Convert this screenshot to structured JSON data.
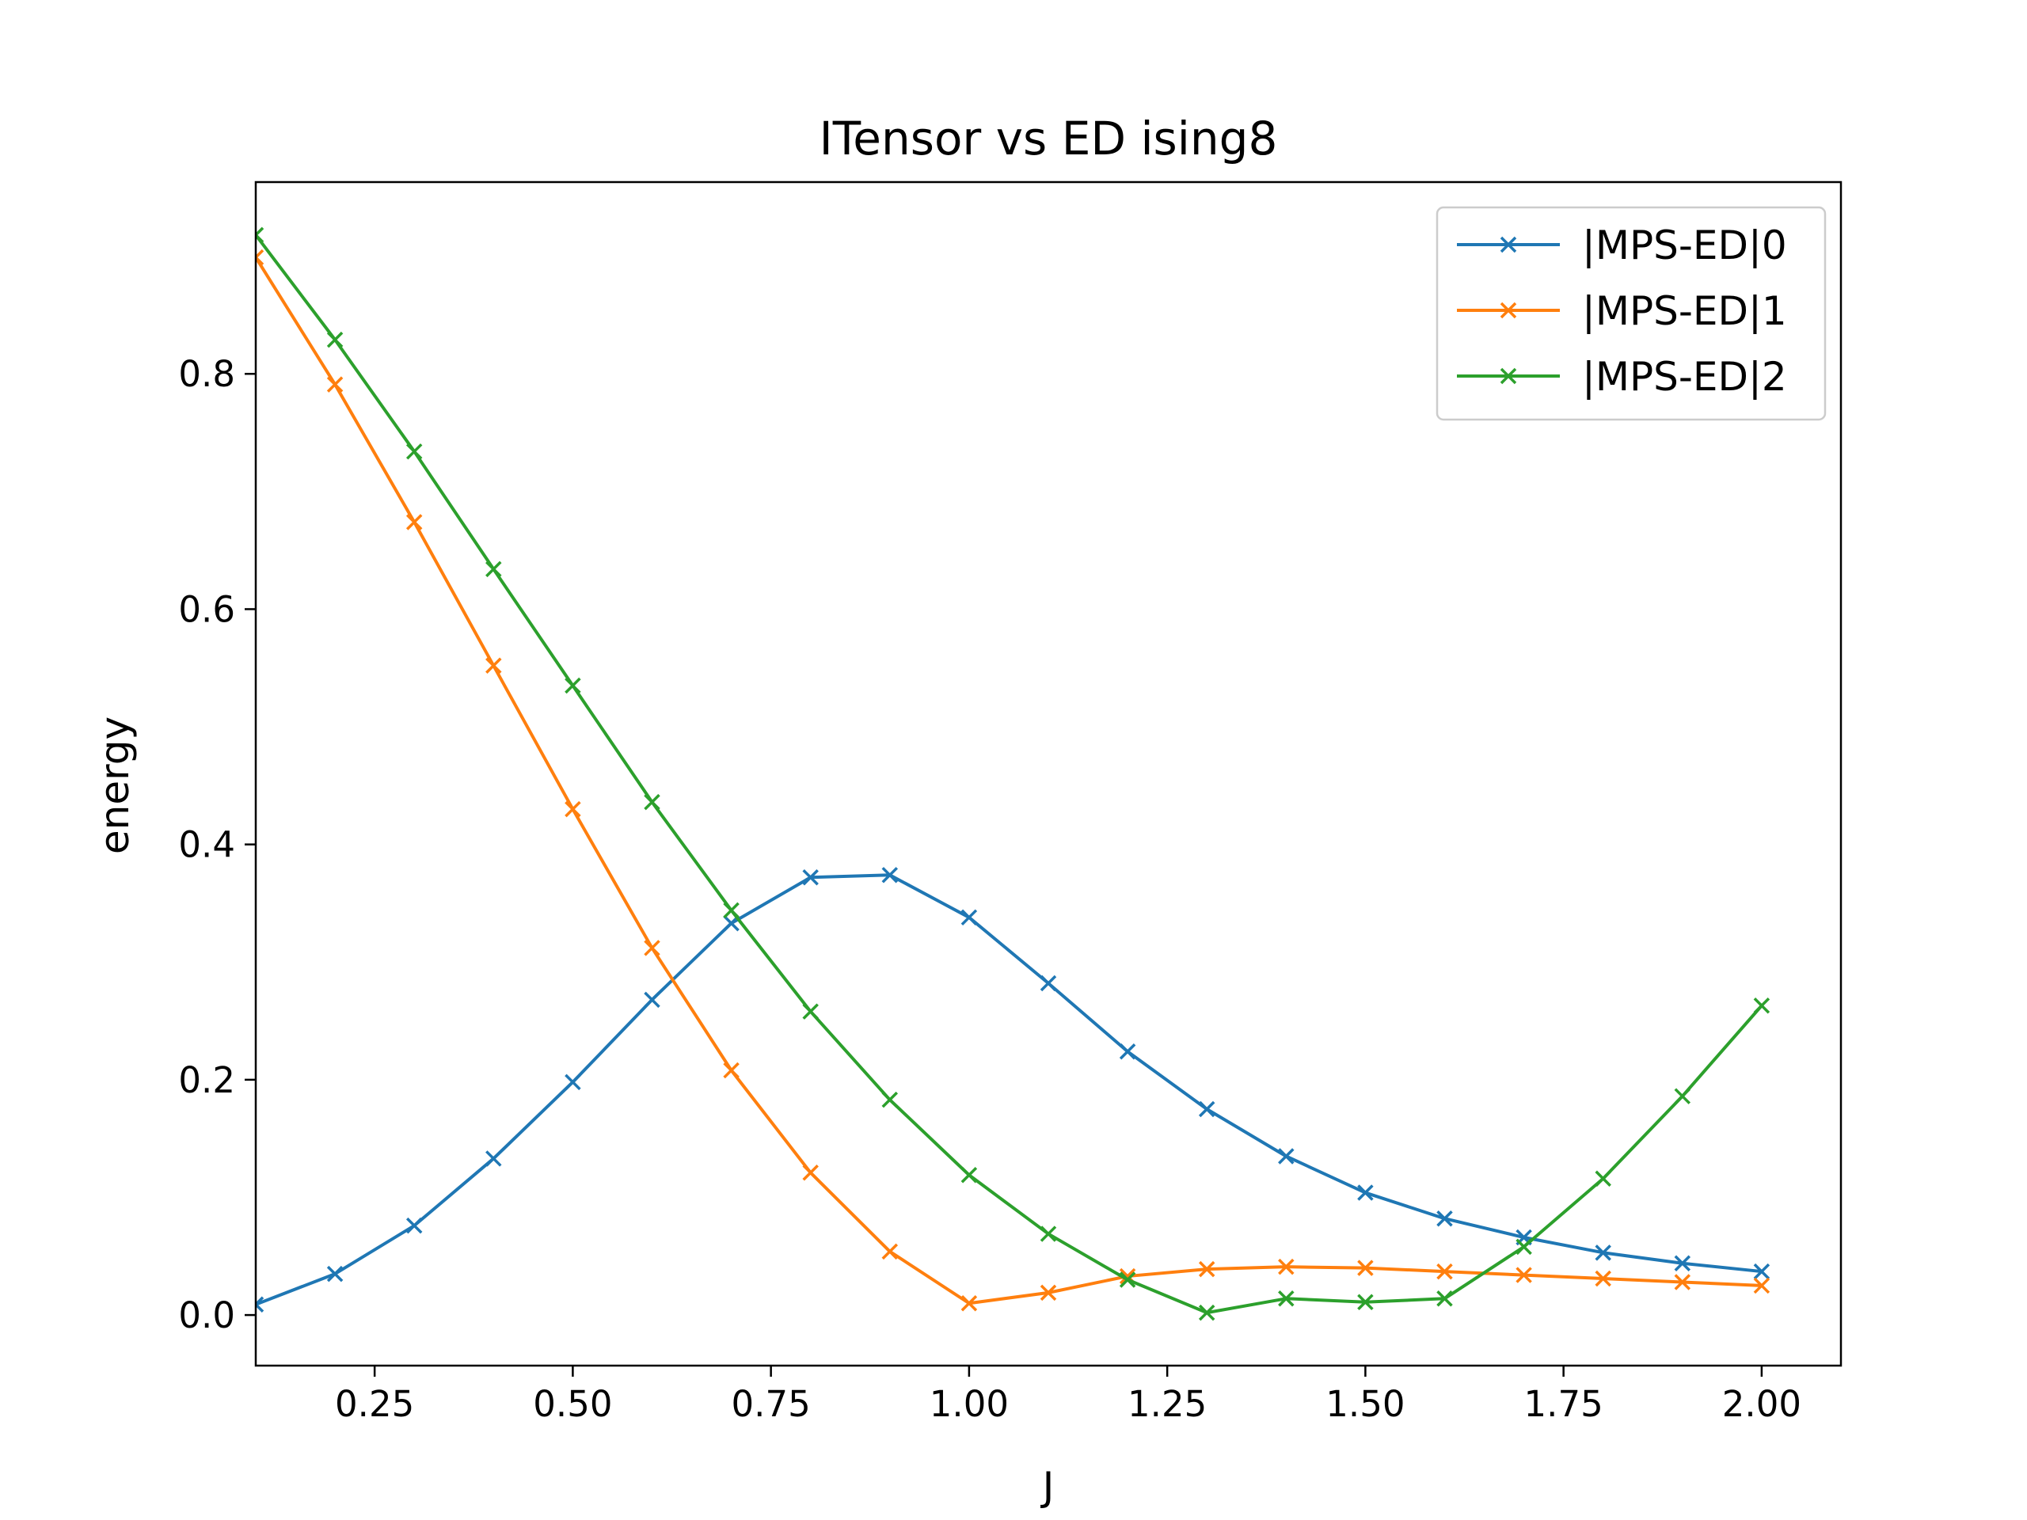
{
  "chart_data": {
    "type": "line",
    "title": "ITensor vs ED ising8",
    "xlabel": "J",
    "ylabel": "energy",
    "xlim": [
      0.1,
      2.1
    ],
    "ylim": [
      -0.043,
      0.963
    ],
    "xticks": [
      0.25,
      0.5,
      0.75,
      1.0,
      1.25,
      1.5,
      1.75,
      2.0
    ],
    "xtick_labels": [
      "0.25",
      "0.50",
      "0.75",
      "1.00",
      "1.25",
      "1.50",
      "1.75",
      "2.00"
    ],
    "yticks": [
      0.0,
      0.2,
      0.4,
      0.6,
      0.8
    ],
    "ytick_labels": [
      "0.0",
      "0.2",
      "0.4",
      "0.6",
      "0.8"
    ],
    "grid": false,
    "legend_position": "top-right",
    "marker": "x",
    "x": [
      0.1,
      0.2,
      0.3,
      0.4,
      0.5,
      0.6,
      0.7,
      0.8,
      0.9,
      1.0,
      1.1,
      1.2,
      1.3,
      1.4,
      1.5,
      1.6,
      1.7,
      1.8,
      1.9,
      2.0
    ],
    "series": [
      {
        "name": "|MPS-ED|0",
        "color": "#1f77b4",
        "values": [
          0.009,
          0.035,
          0.076,
          0.133,
          0.198,
          0.268,
          0.333,
          0.372,
          0.374,
          0.338,
          0.282,
          0.224,
          0.175,
          0.135,
          0.104,
          0.082,
          0.066,
          0.053,
          0.044,
          0.037
        ]
      },
      {
        "name": "|MPS-ED|1",
        "color": "#ff7f0e",
        "values": [
          0.899,
          0.791,
          0.674,
          0.552,
          0.43,
          0.312,
          0.208,
          0.121,
          0.054,
          0.01,
          0.019,
          0.033,
          0.039,
          0.041,
          0.04,
          0.037,
          0.034,
          0.031,
          0.028,
          0.025
        ]
      },
      {
        "name": "|MPS-ED|2",
        "color": "#2ca02c",
        "values": [
          0.918,
          0.829,
          0.734,
          0.634,
          0.535,
          0.436,
          0.344,
          0.258,
          0.183,
          0.119,
          0.069,
          0.03,
          0.002,
          0.014,
          0.011,
          0.014,
          0.058,
          0.116,
          0.186,
          0.263
        ]
      }
    ]
  }
}
